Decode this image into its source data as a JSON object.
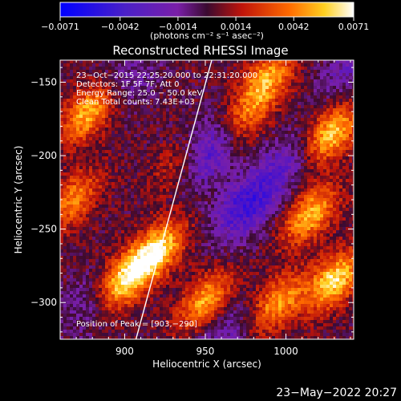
{
  "colorbar": {
    "tick_labels": [
      "−0.0071",
      "−0.0042",
      "−0.0014",
      "0.0014",
      "0.0042",
      "0.0071"
    ],
    "unit_label": "(photons cm⁻² s⁻¹ asec⁻²)",
    "range": [
      -0.0071,
      0.0071
    ]
  },
  "annotations": {
    "time_range": "23−Oct−2015 22:25:20.000 to 22:31:20.000",
    "detectors": "Detectors: 1F 5F 7F, Att 0",
    "energy": "Energy Range: 25.0 − 50.0 keV",
    "method": "Clean     Total counts: 7.43E+03",
    "peak": "Position of Peak = [903,−290]"
  },
  "timestamp": "23−May−2022 20:27",
  "chart_data": {
    "type": "heatmap",
    "title": "Reconstructed RHESSI Image",
    "xlabel": "Heliocentric X (arcsec)",
    "ylabel": "Heliocentric Y (arcsec)",
    "xlim": [
      860,
      1042
    ],
    "ylim": [
      -325,
      -135
    ],
    "x_ticks": [
      900,
      950,
      1000
    ],
    "y_ticks": [
      -150,
      -200,
      -250,
      -300
    ],
    "x_tick_labels": [
      "900",
      "950",
      "1000"
    ],
    "y_tick_labels": [
      "−150",
      "−200",
      "−250",
      "−300"
    ],
    "value_range": [
      -0.0071,
      0.0071
    ],
    "colormap": [
      "#0000ff",
      "#7a1fa8",
      "#3a0a30",
      "#c0140a",
      "#ff6a00",
      "#ffd020",
      "#ffffff"
    ],
    "limb_line": [
      [
        907,
        -325
      ],
      [
        954,
        -135
      ]
    ],
    "bright_sources": [
      {
        "x": 878,
        "y": -170,
        "value": 0.0055
      },
      {
        "x": 868,
        "y": -230,
        "value": 0.004
      },
      {
        "x": 920,
        "y": -265,
        "value": 0.0062
      },
      {
        "x": 950,
        "y": -300,
        "value": 0.005
      },
      {
        "x": 988,
        "y": -148,
        "value": 0.0048
      },
      {
        "x": 1028,
        "y": -185,
        "value": 0.0058
      },
      {
        "x": 1015,
        "y": -240,
        "value": 0.0052
      },
      {
        "x": 1030,
        "y": -285,
        "value": 0.006
      },
      {
        "x": 995,
        "y": -300,
        "value": 0.0045
      },
      {
        "x": 900,
        "y": -285,
        "value": 0.0064
      },
      {
        "x": 935,
        "y": -205,
        "value": 0.003
      },
      {
        "x": 975,
        "y": -175,
        "value": 0.0032
      }
    ],
    "dark_sources": [
      {
        "x": 950,
        "y": -198,
        "value": -0.0045
      },
      {
        "x": 975,
        "y": -235,
        "value": -0.0042
      },
      {
        "x": 1000,
        "y": -205,
        "value": -0.0025
      },
      {
        "x": 900,
        "y": -150,
        "value": -0.002
      },
      {
        "x": 960,
        "y": -320,
        "value": -0.0022
      },
      {
        "x": 880,
        "y": -300,
        "value": -0.0018
      },
      {
        "x": 1040,
        "y": -140,
        "value": -0.0022
      }
    ]
  }
}
